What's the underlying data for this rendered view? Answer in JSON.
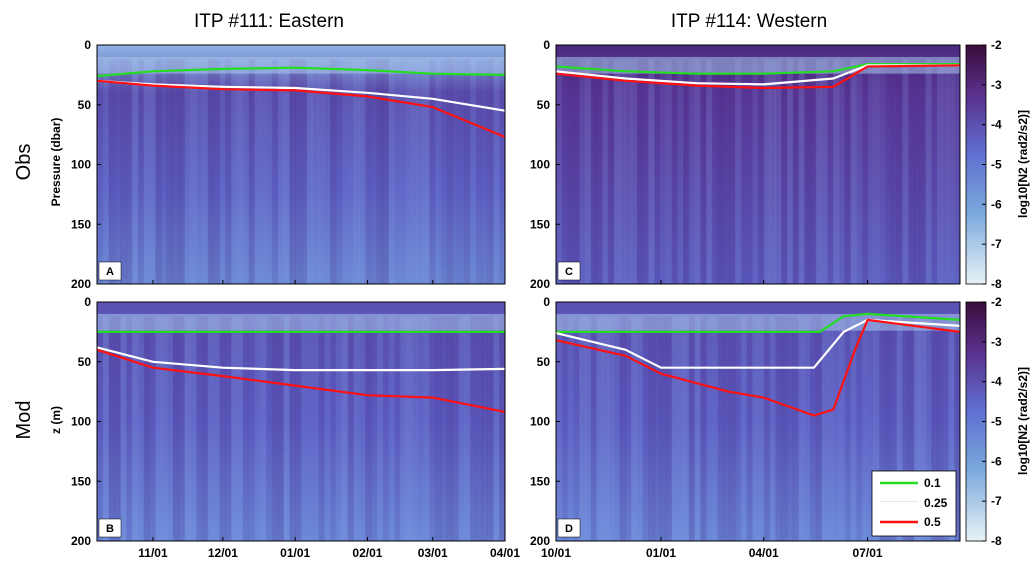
{
  "titles": {
    "left": "ITP #111: Eastern",
    "right": "ITP #114: Western"
  },
  "row_labels": {
    "top": "Obs",
    "bottom": "Mod"
  },
  "colors": {
    "green": "#22dd22",
    "white": "#ffffff",
    "red": "#ff1111",
    "cmap_low": "#e6f3f6",
    "cmap_mid": "#5f6ed0",
    "cmap_high": "#3a0d3a"
  },
  "colorbar": {
    "label": "log10[N2 (rad2/s2)]",
    "ticks": [
      "-2",
      "-3",
      "-4",
      "-5",
      "-6",
      "-7",
      "-8"
    ],
    "range": [
      -8,
      -2
    ]
  },
  "legend": {
    "entries": [
      {
        "label": "0.1"
      },
      {
        "label": "0.25"
      },
      {
        "label": "0.5"
      }
    ]
  },
  "chart_data": [
    {
      "id": "A",
      "type": "heatmap",
      "panel_label": "A",
      "ylabel": "Pressure (dbar)",
      "yticks": [
        "0",
        "50",
        "100",
        "150",
        "200"
      ],
      "ylim": [
        200,
        0
      ],
      "xticks": [],
      "x_range": [
        "2017-10-08",
        "2018-04-01"
      ],
      "series": [
        {
          "name": "0.1",
          "color": "green",
          "x": [
            "2017-10-08",
            "2017-11-01",
            "2017-12-01",
            "2018-01-01",
            "2018-02-01",
            "2018-03-01",
            "2018-04-01"
          ],
          "y": [
            26,
            22,
            20,
            19,
            21,
            24,
            25
          ]
        },
        {
          "name": "0.25",
          "color": "white",
          "x": [
            "2017-10-08",
            "2017-11-01",
            "2017-12-01",
            "2018-01-01",
            "2018-02-01",
            "2018-03-01",
            "2018-04-01"
          ],
          "y": [
            30,
            33,
            35,
            36,
            40,
            45,
            55
          ]
        },
        {
          "name": "0.5",
          "color": "red",
          "x": [
            "2017-10-08",
            "2017-11-01",
            "2017-12-01",
            "2018-01-01",
            "2018-02-01",
            "2018-03-01",
            "2018-04-01"
          ],
          "y": [
            30,
            34,
            37,
            38,
            43,
            52,
            77
          ]
        }
      ]
    },
    {
      "id": "B",
      "type": "heatmap",
      "panel_label": "B",
      "ylabel": "z (m)",
      "yticks": [
        "0",
        "50",
        "100",
        "150",
        "200"
      ],
      "ylim": [
        200,
        0
      ],
      "xticks": [
        "11/01",
        "12/01",
        "01/01",
        "02/01",
        "03/01",
        "04/01"
      ],
      "x_range": [
        "2017-10-08",
        "2018-04-01"
      ],
      "series": [
        {
          "name": "0.1",
          "color": "green",
          "x": [
            "2017-10-08",
            "2018-04-01"
          ],
          "y": [
            25,
            25
          ]
        },
        {
          "name": "0.25",
          "color": "white",
          "x": [
            "2017-10-08",
            "2017-11-01",
            "2017-12-01",
            "2018-01-01",
            "2018-02-01",
            "2018-03-01",
            "2018-04-01"
          ],
          "y": [
            38,
            50,
            55,
            57,
            57,
            57,
            56
          ]
        },
        {
          "name": "0.5",
          "color": "red",
          "x": [
            "2017-10-08",
            "2017-11-01",
            "2017-12-01",
            "2018-01-01",
            "2018-02-01",
            "2018-03-01",
            "2018-04-01"
          ],
          "y": [
            40,
            55,
            62,
            70,
            78,
            80,
            92
          ]
        }
      ]
    },
    {
      "id": "C",
      "type": "heatmap",
      "panel_label": "C",
      "ylabel": "",
      "yticks": [
        "0",
        "50",
        "100",
        "150",
        "200"
      ],
      "ylim": [
        200,
        0
      ],
      "xticks": [],
      "x_range": [
        "2017-10-01",
        "2018-09-20"
      ],
      "series": [
        {
          "name": "0.1",
          "color": "green",
          "x": [
            "2017-10-01",
            "2017-12-01",
            "2018-02-01",
            "2018-04-01",
            "2018-06-01",
            "2018-07-01",
            "2018-09-20"
          ],
          "y": [
            18,
            22,
            24,
            24,
            22,
            16,
            16
          ]
        },
        {
          "name": "0.25",
          "color": "white",
          "x": [
            "2017-10-01",
            "2017-12-01",
            "2018-02-01",
            "2018-04-01",
            "2018-06-01",
            "2018-07-01",
            "2018-09-20"
          ],
          "y": [
            22,
            28,
            32,
            33,
            28,
            17,
            17
          ]
        },
        {
          "name": "0.5",
          "color": "red",
          "x": [
            "2017-10-01",
            "2017-12-01",
            "2018-02-01",
            "2018-04-01",
            "2018-06-01",
            "2018-07-01",
            "2018-09-20"
          ],
          "y": [
            24,
            30,
            34,
            36,
            35,
            18,
            17
          ]
        }
      ]
    },
    {
      "id": "D",
      "type": "heatmap",
      "panel_label": "D",
      "ylabel": "",
      "yticks": [
        "0",
        "50",
        "100",
        "150",
        "200"
      ],
      "ylim": [
        200,
        0
      ],
      "xticks": [
        "10/01",
        "01/01",
        "04/01",
        "07/01"
      ],
      "x_range": [
        "2017-10-01",
        "2018-09-20"
      ],
      "series": [
        {
          "name": "0.1",
          "color": "green",
          "x": [
            "2017-10-01",
            "2018-05-20",
            "2018-06-10",
            "2018-07-01",
            "2018-09-20"
          ],
          "y": [
            25,
            25,
            12,
            10,
            15
          ]
        },
        {
          "name": "0.25",
          "color": "white",
          "x": [
            "2017-10-01",
            "2017-12-01",
            "2018-01-01",
            "2018-04-01",
            "2018-05-15",
            "2018-06-10",
            "2018-07-01",
            "2018-09-20"
          ],
          "y": [
            26,
            40,
            55,
            55,
            55,
            25,
            15,
            20
          ]
        },
        {
          "name": "0.5",
          "color": "red",
          "x": [
            "2017-10-01",
            "2017-12-01",
            "2018-01-01",
            "2018-03-01",
            "2018-04-01",
            "2018-05-15",
            "2018-06-01",
            "2018-06-20",
            "2018-07-01",
            "2018-09-20"
          ],
          "y": [
            32,
            45,
            60,
            75,
            80,
            95,
            90,
            40,
            15,
            25
          ]
        }
      ]
    }
  ]
}
